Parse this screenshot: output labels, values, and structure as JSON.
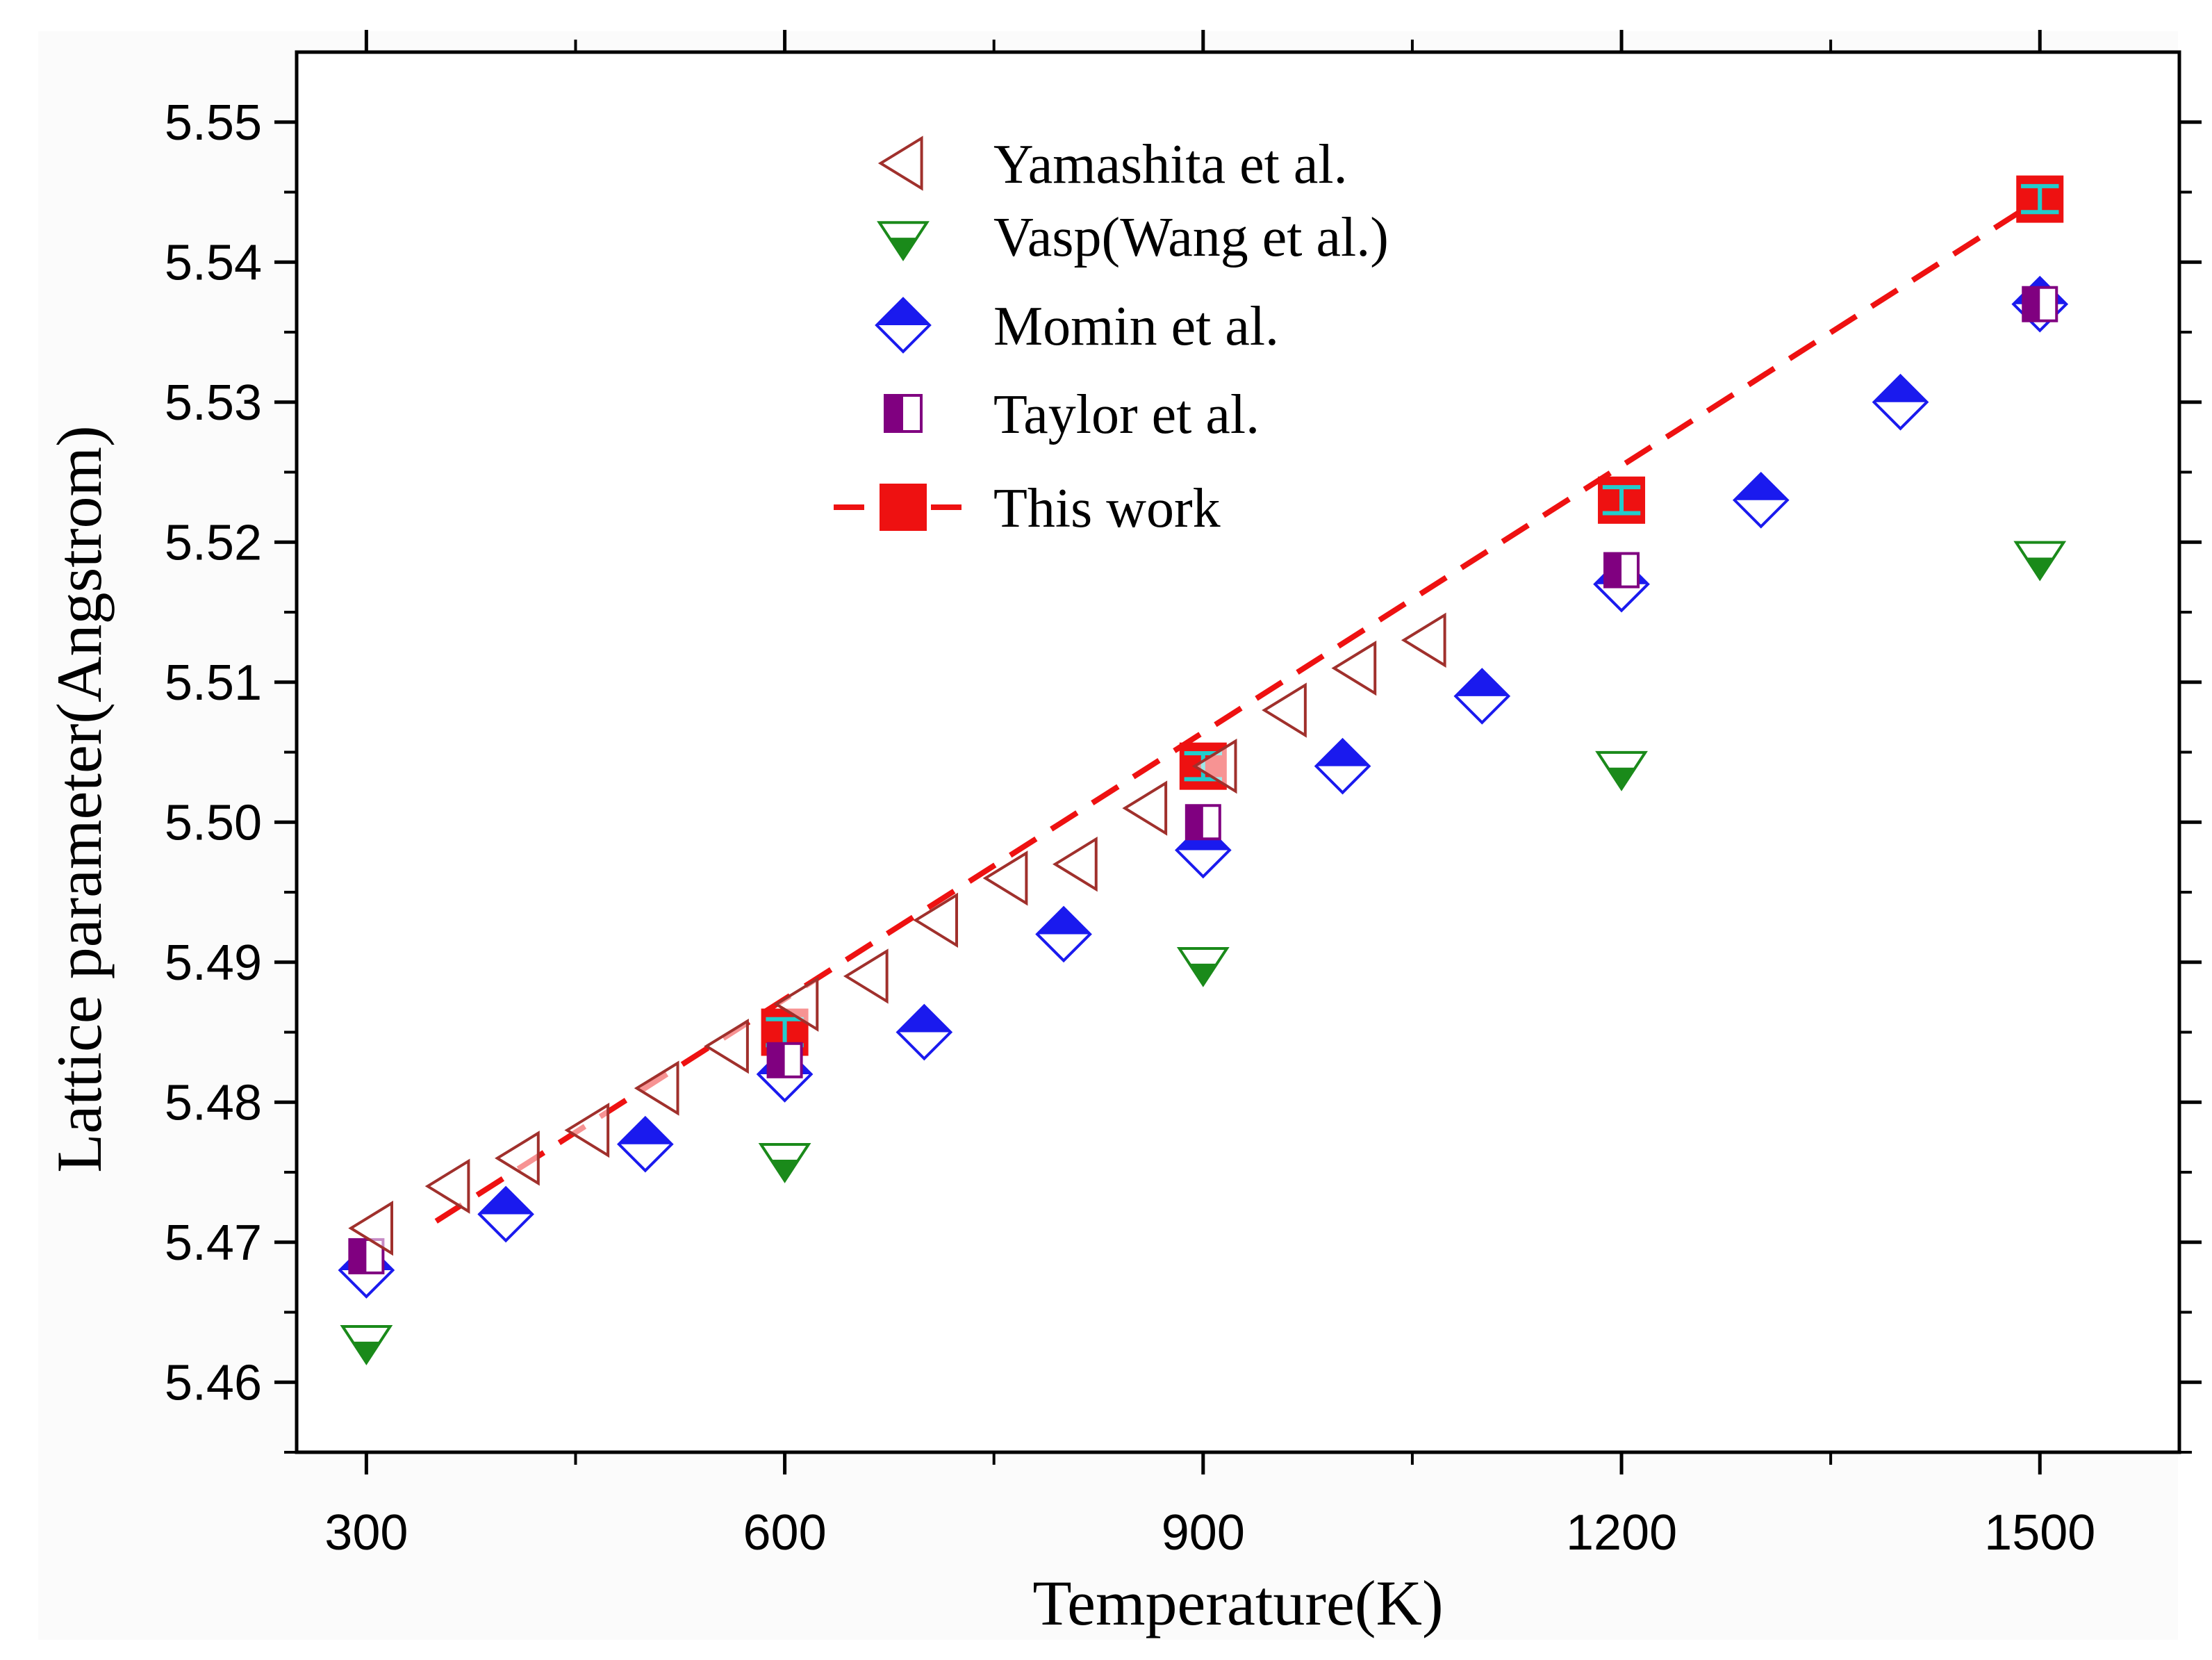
{
  "chart_data": {
    "type": "scatter",
    "title": "",
    "xlabel": "Temperature(K)",
    "ylabel": "Lattice parameter(Angstrom)",
    "xlim": [
      250,
      1600
    ],
    "ylim": [
      5.455,
      5.555
    ],
    "xticks": [
      300,
      600,
      900,
      1200,
      1500
    ],
    "xtick_labels": [
      "300",
      "600",
      "900",
      "1200",
      "1500"
    ],
    "yticks": [
      5.46,
      5.47,
      5.48,
      5.49,
      5.5,
      5.51,
      5.52,
      5.53,
      5.54,
      5.55
    ],
    "ytick_labels": [
      "5.46",
      "5.47",
      "5.48",
      "5.49",
      "5.50",
      "5.51",
      "5.52",
      "5.53",
      "5.54",
      "5.55"
    ],
    "grid": false,
    "legend_position": "top-center",
    "series": [
      {
        "name": "Yamashita et al.",
        "marker": "left-triangle-open",
        "color": "#a0302c",
        "x": [
          305,
          360,
          410,
          460,
          510,
          560,
          610,
          660,
          710,
          760,
          810,
          860,
          910,
          960,
          1010,
          1060
        ],
        "y": [
          5.471,
          5.474,
          5.476,
          5.478,
          5.481,
          5.484,
          5.487,
          5.489,
          5.493,
          5.496,
          5.497,
          5.501,
          5.504,
          5.508,
          5.511,
          5.513
        ]
      },
      {
        "name": "Vasp(Wang et al.)",
        "marker": "down-triangle-half",
        "color": "#1a8a1a",
        "x": [
          300,
          600,
          900,
          1200,
          1500
        ],
        "y": [
          5.463,
          5.476,
          5.49,
          5.504,
          5.519
        ]
      },
      {
        "name": "Momin et al.",
        "marker": "diamond-half",
        "color": "#1a1aee",
        "x": [
          300,
          400,
          500,
          600,
          700,
          800,
          900,
          1000,
          1100,
          1200,
          1300,
          1400,
          1500
        ],
        "y": [
          5.468,
          5.472,
          5.477,
          5.482,
          5.485,
          5.492,
          5.498,
          5.504,
          5.509,
          5.517,
          5.523,
          5.53,
          5.537
        ]
      },
      {
        "name": "Taylor et al.",
        "marker": "square-half-left",
        "color": "#800080",
        "x": [
          300,
          600,
          900,
          1200,
          1500
        ],
        "y": [
          5.469,
          5.483,
          5.5,
          5.518,
          5.537
        ]
      },
      {
        "name": "This work",
        "marker": "square-filled",
        "color": "#ee1111",
        "errorbar_color": "#22cccc",
        "line_style": "dashed",
        "x": [
          600,
          900,
          1200,
          1500
        ],
        "y": [
          5.485,
          5.504,
          5.523,
          5.5445
        ],
        "fit_line": {
          "x": [
            350,
            1500
          ],
          "y": [
            5.4715,
            5.5445
          ]
        }
      }
    ]
  }
}
